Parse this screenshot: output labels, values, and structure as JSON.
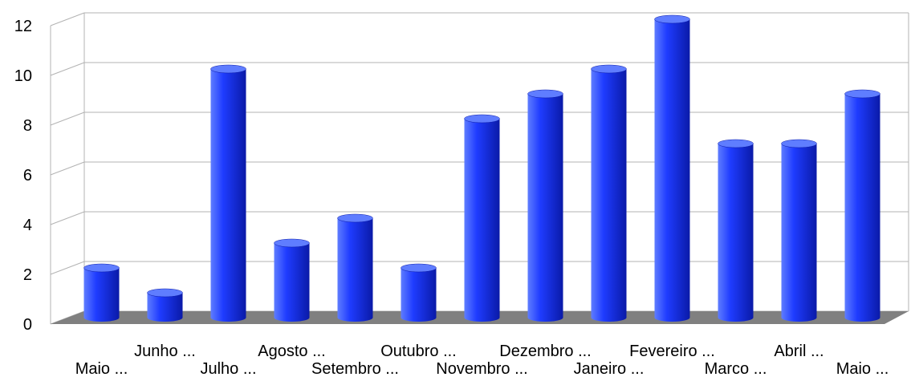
{
  "chart_data": {
    "type": "bar",
    "categories": [
      "Maio ...",
      "Junho ...",
      "Julho ...",
      "Agosto ...",
      "Setembro ...",
      "Outubro ...",
      "Novembro ...",
      "Dezembro ...",
      "Janeiro ...",
      "Fevereiro ...",
      "Marco ...",
      "Abril ...",
      "Maio ..."
    ],
    "values": [
      2,
      1,
      10,
      3,
      4,
      2,
      8,
      9,
      10,
      12,
      7,
      7,
      9
    ],
    "ylim": [
      0,
      12
    ],
    "yticks": [
      "0",
      "2",
      "4",
      "6",
      "8",
      "10",
      "12"
    ],
    "grid": true,
    "style": "3d-cylinder",
    "colors": {
      "bar": "#1f3cff",
      "bar_dark": "#0a1aa8",
      "bar_light": "#5f7dff",
      "floor": "#808080",
      "grid": "#b3b3b3"
    }
  }
}
